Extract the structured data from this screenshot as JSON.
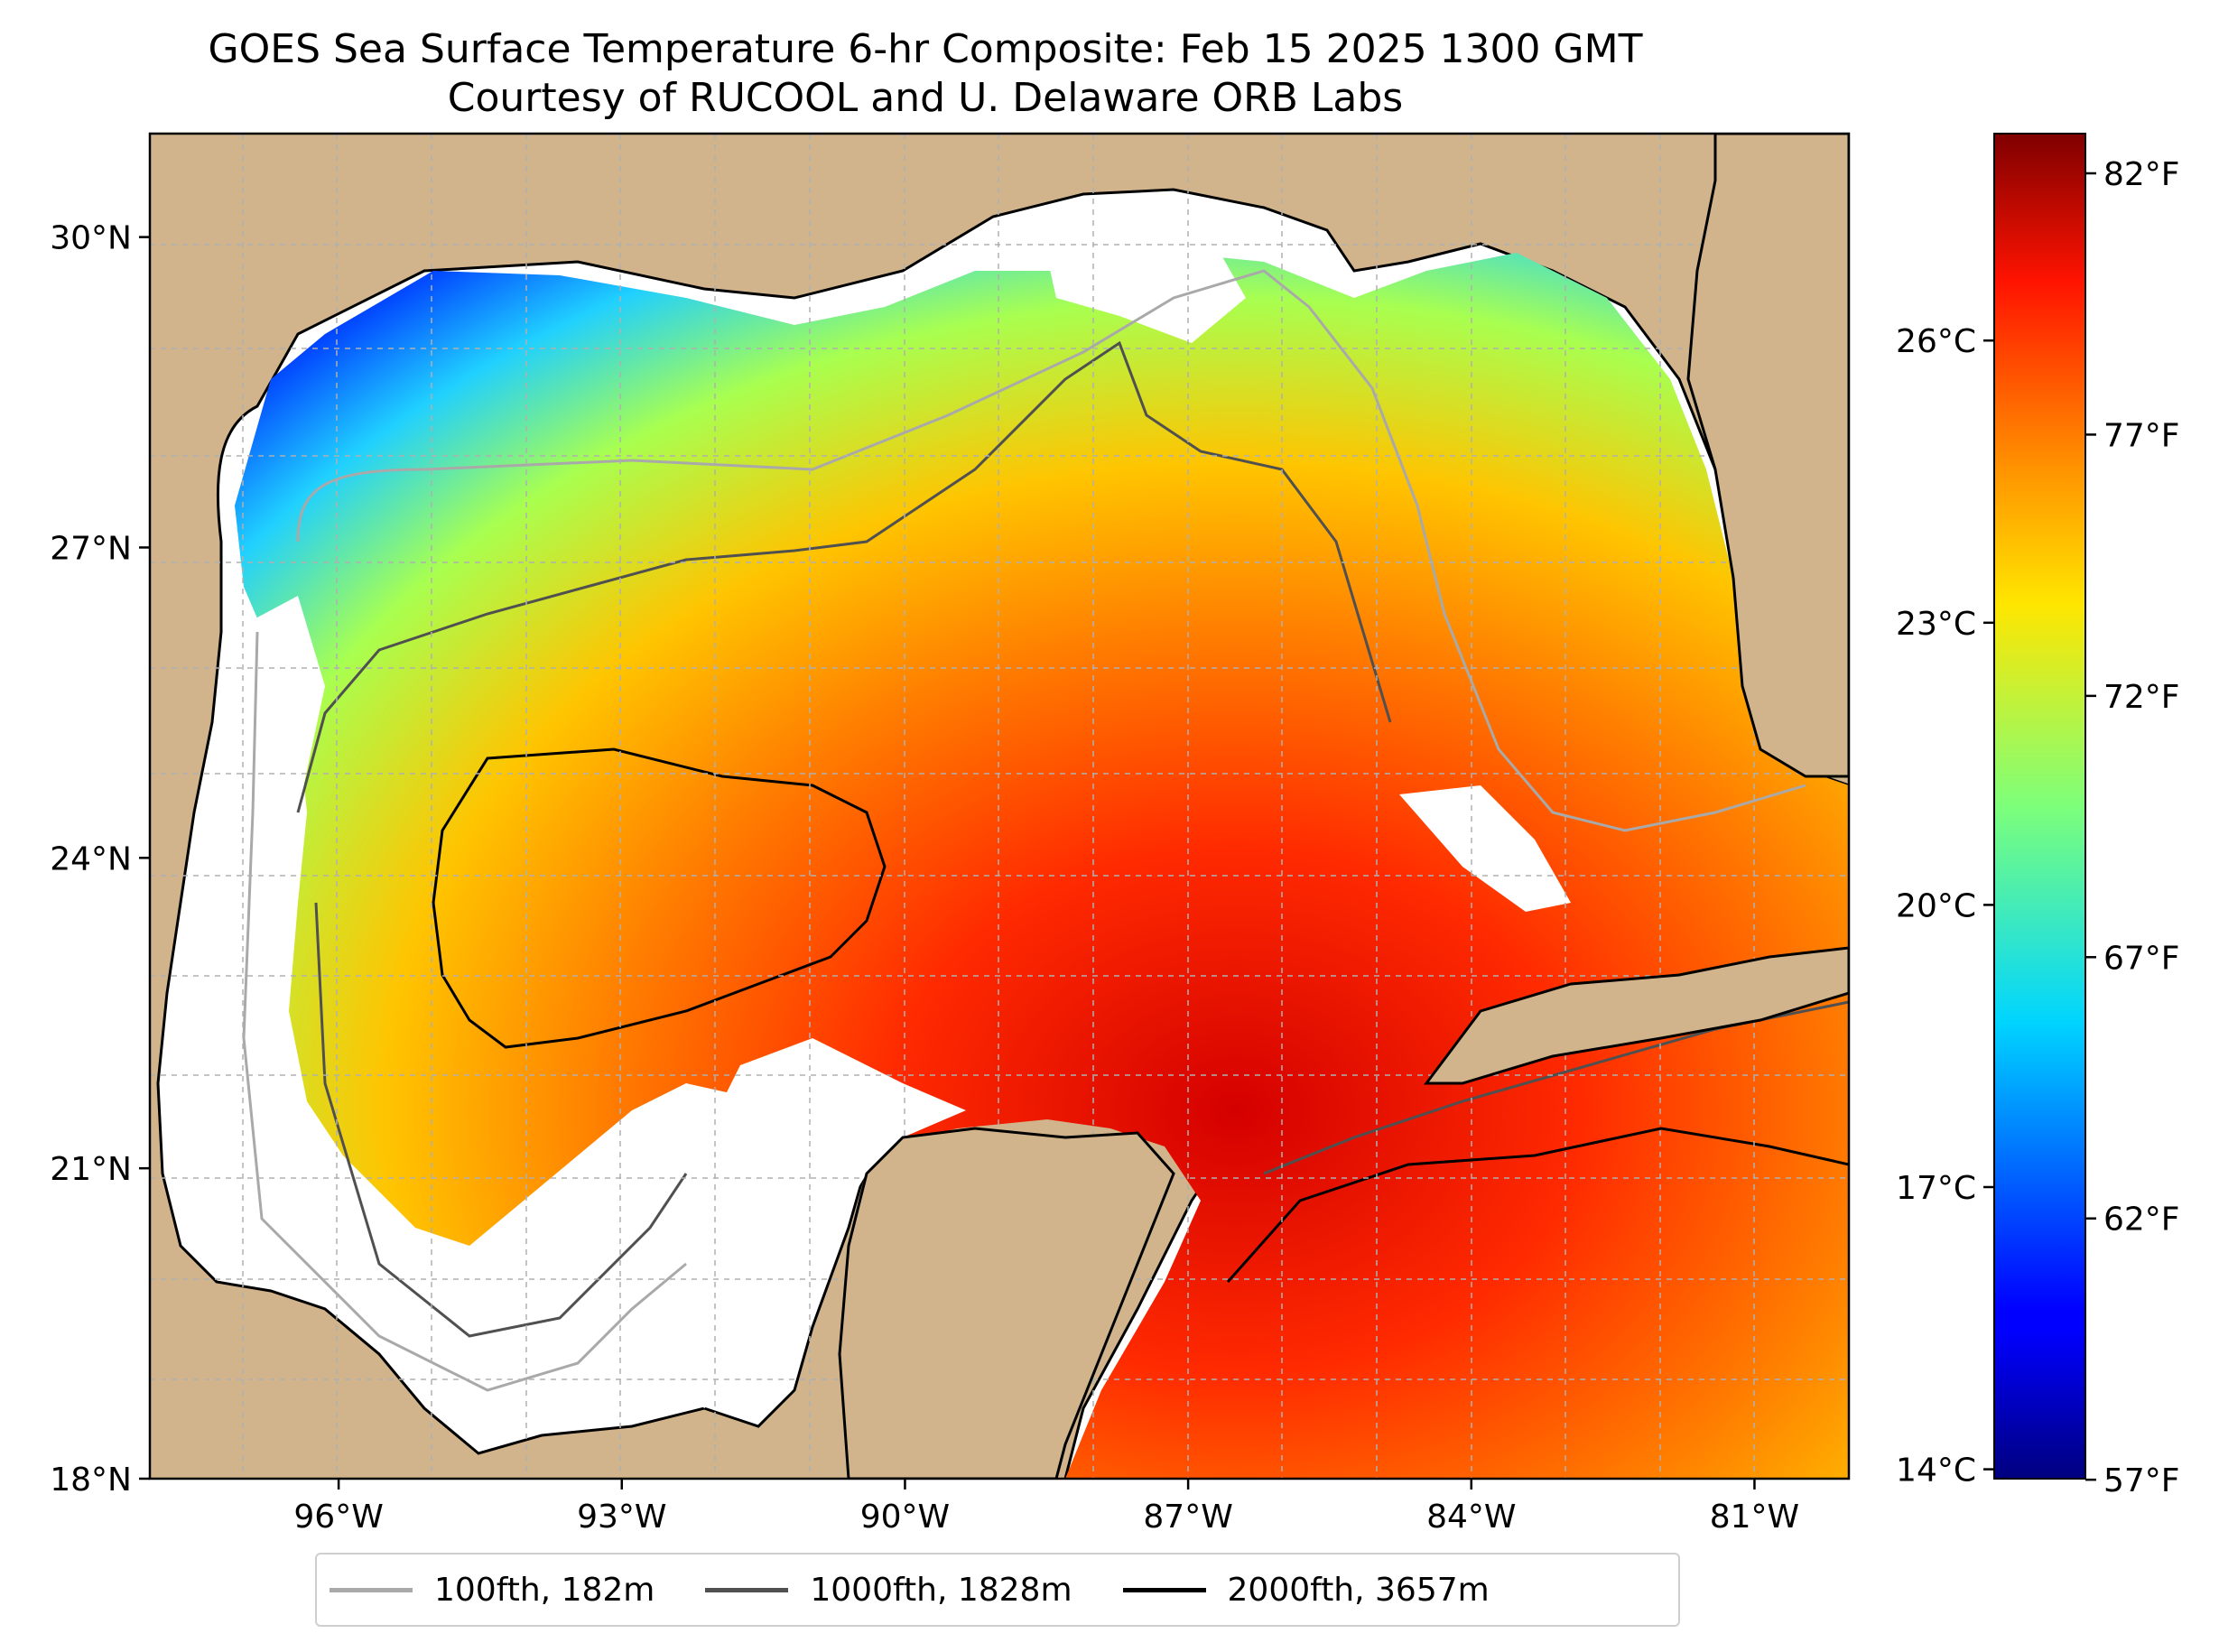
{
  "title": {
    "line1": "GOES Sea Surface Temperature 6-hr Composite: Feb 15 2025 1300 GMT",
    "line2": "Courtesy of RUCOOL and U. Delaware ORB Labs"
  },
  "map": {
    "lon_range": [
      -98.0,
      -80.0
    ],
    "lat_range": [
      18.0,
      31.0
    ],
    "lat_ticks": [
      {
        "value": 30,
        "label": "30°N"
      },
      {
        "value": 27,
        "label": "27°N"
      },
      {
        "value": 24,
        "label": "24°N"
      },
      {
        "value": 21,
        "label": "21°N"
      },
      {
        "value": 18,
        "label": "18°N"
      }
    ],
    "lon_ticks": [
      {
        "value": -96,
        "label": "96°W"
      },
      {
        "value": -93,
        "label": "93°W"
      },
      {
        "value": -90,
        "label": "90°W"
      },
      {
        "value": -87,
        "label": "87°W"
      },
      {
        "value": -84,
        "label": "84°W"
      },
      {
        "value": -81,
        "label": "81°W"
      }
    ],
    "colors": {
      "land": "#d2b48c",
      "no_data": "#ffffff",
      "coastline": "#000000",
      "grid": "#b0b0b0"
    }
  },
  "colorbar": {
    "colormap": "jet",
    "celsius_range": [
      13.9,
      28.2
    ],
    "celsius_ticks": [
      {
        "value": 26,
        "label": "26°C"
      },
      {
        "value": 23,
        "label": "23°C"
      },
      {
        "value": 20,
        "label": "20°C"
      },
      {
        "value": 17,
        "label": "17°C"
      },
      {
        "value": 14,
        "label": "14°C"
      }
    ],
    "fahrenheit_ticks": [
      {
        "value": 82,
        "label": "82°F"
      },
      {
        "value": 77,
        "label": "77°F"
      },
      {
        "value": 72,
        "label": "72°F"
      },
      {
        "value": 67,
        "label": "67°F"
      },
      {
        "value": 62,
        "label": "62°F"
      },
      {
        "value": 57,
        "label": "57°F"
      }
    ]
  },
  "legend": {
    "items": [
      {
        "label": "100fth, 182m",
        "color": "#a9a9a9"
      },
      {
        "label": "1000fth, 1828m",
        "color": "#505050"
      },
      {
        "label": "2000fth, 3657m",
        "color": "#000000"
      }
    ]
  }
}
